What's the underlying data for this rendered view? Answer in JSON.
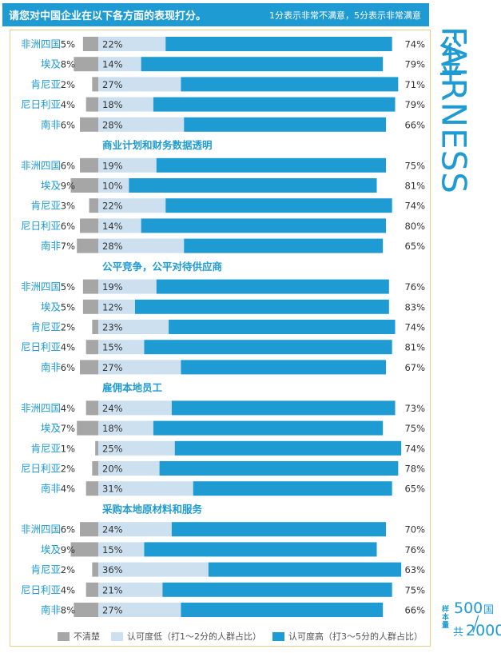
{
  "header": {
    "question": "请您对中国企业在以下各方面的表现打分。",
    "scale_note": "1分表示非常不满意，5分表示非常满意"
  },
  "side": {
    "title_cn": "公平",
    "title_en": "FAIRNESS",
    "sample_label": "样本量",
    "sample_value1": "500",
    "sample_unit1": "国",
    "sample_unit2": "共",
    "sample_value2": "2000"
  },
  "colors": {
    "unclear": "#a6a6a6",
    "low": "#cde0f0",
    "high": "#1f9bd3",
    "accent": "#1f9bd3",
    "text": "#1f9bd3"
  },
  "legend": {
    "unclear": "不清楚",
    "low": "认可度低（打1～2分的人群占比）",
    "high": "认可度高（打3～5分的人群占比）"
  },
  "chart_data": {
    "type": "bar",
    "stacked": true,
    "orientation": "horizontal",
    "series_names": [
      "不清楚",
      "认可度低（打1～2分的人群占比）",
      "认可度高（打3～5分的人群占比）"
    ],
    "groups": [
      {
        "title": "",
        "rows": [
          {
            "country": "非洲四国",
            "unclear": 5,
            "low": 22,
            "high": 74
          },
          {
            "country": "埃及",
            "unclear": 8,
            "low": 14,
            "high": 79
          },
          {
            "country": "肯尼亚",
            "unclear": 2,
            "low": 27,
            "high": 71
          },
          {
            "country": "尼日利亚",
            "unclear": 4,
            "low": 18,
            "high": 79
          },
          {
            "country": "南非",
            "unclear": 6,
            "low": 28,
            "high": 66
          }
        ]
      },
      {
        "title": "商业计划和财务数据透明",
        "rows": [
          {
            "country": "非洲四国",
            "unclear": 6,
            "low": 19,
            "high": 75
          },
          {
            "country": "埃及",
            "unclear": 9,
            "low": 10,
            "high": 81
          },
          {
            "country": "肯尼亚",
            "unclear": 3,
            "low": 22,
            "high": 74
          },
          {
            "country": "尼日利亚",
            "unclear": 6,
            "low": 14,
            "high": 80
          },
          {
            "country": "南非",
            "unclear": 7,
            "low": 28,
            "high": 65
          }
        ]
      },
      {
        "title": "公平竞争，公平对待供应商",
        "rows": [
          {
            "country": "非洲四国",
            "unclear": 5,
            "low": 19,
            "high": 76
          },
          {
            "country": "埃及",
            "unclear": 5,
            "low": 12,
            "high": 83
          },
          {
            "country": "肯尼亚",
            "unclear": 2,
            "low": 23,
            "high": 74
          },
          {
            "country": "尼日利亚",
            "unclear": 4,
            "low": 15,
            "high": 81
          },
          {
            "country": "南非",
            "unclear": 6,
            "low": 27,
            "high": 67
          }
        ]
      },
      {
        "title": "雇佣本地员工",
        "rows": [
          {
            "country": "非洲四国",
            "unclear": 4,
            "low": 24,
            "high": 73
          },
          {
            "country": "埃及",
            "unclear": 7,
            "low": 18,
            "high": 75
          },
          {
            "country": "肯尼亚",
            "unclear": 1,
            "low": 25,
            "high": 74
          },
          {
            "country": "尼日利亚",
            "unclear": 2,
            "low": 20,
            "high": 78
          },
          {
            "country": "南非",
            "unclear": 4,
            "low": 31,
            "high": 65
          }
        ]
      },
      {
        "title": "采购本地原材料和服务",
        "rows": [
          {
            "country": "非洲四国",
            "unclear": 6,
            "low": 24,
            "high": 70
          },
          {
            "country": "埃及",
            "unclear": 9,
            "low": 15,
            "high": 76
          },
          {
            "country": "肯尼亚",
            "unclear": 2,
            "low": 36,
            "high": 63
          },
          {
            "country": "尼日利亚",
            "unclear": 4,
            "low": 21,
            "high": 75
          },
          {
            "country": "南非",
            "unclear": 8,
            "low": 27,
            "high": 66
          }
        ]
      }
    ]
  }
}
